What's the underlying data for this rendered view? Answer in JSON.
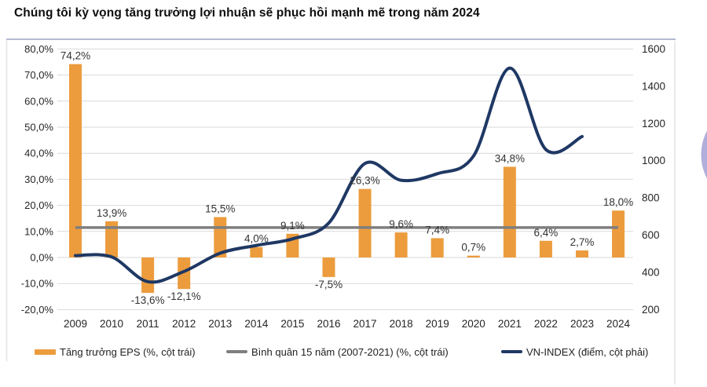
{
  "title": "Chúng tôi kỳ vọng tăng trưởng lợi nhuận sẽ phục hồi mạnh mẽ trong năm 2024",
  "colors": {
    "bar": "#EC9C3D",
    "vnindex_line": "#1F3864",
    "average_line": "#7F7F7F",
    "grid": "#D9D9D9",
    "axis_text": "#262626",
    "data_label": "#333333",
    "frame_top": "#B3BAD1",
    "frame_side": "#E3E3E7",
    "corner_arc": "#A5A0D6"
  },
  "chart_data": {
    "type": "combo (bar + line, dual axis)",
    "categories": [
      "2009",
      "2010",
      "2011",
      "2012",
      "2013",
      "2014",
      "2015",
      "2016",
      "2017",
      "2018",
      "2019",
      "2020",
      "2021",
      "2022",
      "2023",
      "2024"
    ],
    "series": [
      {
        "name": "Tăng trưởng EPS (%, cột trái)",
        "type": "bar",
        "axis": "left",
        "values": [
          74.2,
          13.9,
          -13.6,
          -12.1,
          15.5,
          4.0,
          9.1,
          -7.5,
          26.3,
          9.6,
          7.4,
          0.7,
          34.8,
          6.4,
          2.7,
          18.0
        ],
        "labels": [
          "74,2%",
          "13,9%",
          "-13,6%",
          "-12,1%",
          "15,5%",
          "4,0%",
          "9,1%",
          "-7,5%",
          "26,3%",
          "9,6%",
          "7,4%",
          "0,7%",
          "34,8%",
          "6,4%",
          "2,7%",
          "18,0%"
        ]
      },
      {
        "name": "Bình quân 15 năm (2007-2021) (%, cột trái)",
        "type": "flat-line",
        "axis": "left",
        "value": 11.5,
        "from_category_index": 0,
        "to_category_index": 15
      },
      {
        "name": "VN-INDEX (điểm, cột phải)",
        "type": "smooth-line",
        "axis": "right",
        "values": [
          490,
          483,
          350,
          405,
          503,
          545,
          580,
          665,
          985,
          895,
          930,
          1025,
          1497,
          1060,
          1130
        ],
        "note_last_category_index": 14
      }
    ],
    "left_axis": {
      "ticks": [
        "80,0%",
        "70,0%",
        "60,0%",
        "50,0%",
        "40,0%",
        "30,0%",
        "20,0%",
        "10,0%",
        "0,0%",
        "-10,0%",
        "-20,0%"
      ],
      "min": -20,
      "max": 80,
      "grid": true
    },
    "right_axis": {
      "ticks": [
        "1600",
        "1400",
        "1200",
        "1000",
        "800",
        "600",
        "400",
        "200"
      ],
      "min": 200,
      "max": 1600,
      "grid": false
    },
    "legend_position": "bottom"
  },
  "legend": [
    {
      "label": "Tăng trưởng EPS (%, cột trái)"
    },
    {
      "label": "Bình quân 15 năm (2007-2021) (%, cột trái)"
    },
    {
      "label": "VN-INDEX (điểm, cột phải)"
    }
  ]
}
